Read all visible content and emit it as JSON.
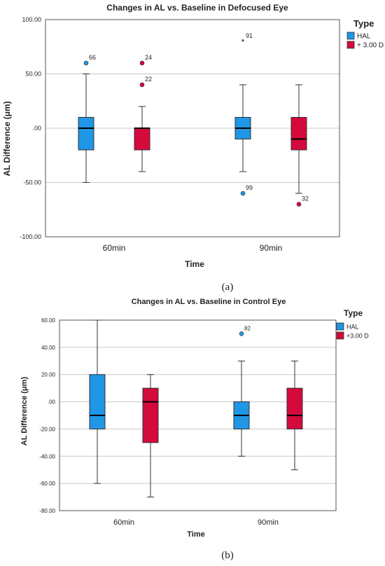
{
  "chart_data": [
    {
      "type": "box",
      "panel_label": "(a)",
      "title": "Changes in AL vs. Baseline in Defocused Eye",
      "xlabel": "Time",
      "ylabel": "AL Difference (μm)",
      "ylim": [
        -100,
        100
      ],
      "yticks": [
        100,
        50,
        0,
        -50,
        -100
      ],
      "ytick_labels": [
        "100.00",
        "50.00",
        ".00",
        "-50.00",
        "-100.00"
      ],
      "categories": [
        "60min",
        "90min"
      ],
      "legend": {
        "title": "Type",
        "position": "top-right"
      },
      "grid": true,
      "series": [
        {
          "name": "HAL",
          "color": "#1f96e6",
          "boxes": [
            {
              "category": "60min",
              "min": -50,
              "q1": -20,
              "median": 0,
              "q3": 10,
              "max": 50,
              "outliers": [
                {
                  "value": 60,
                  "label": "66",
                  "marker": "circle"
                }
              ]
            },
            {
              "category": "90min",
              "min": -40,
              "q1": -10,
              "median": 0,
              "q3": 10,
              "max": 40,
              "outliers": [
                {
                  "value": 80,
                  "label": "91",
                  "marker": "star"
                },
                {
                  "value": -60,
                  "label": "99",
                  "marker": "circle"
                }
              ]
            }
          ]
        },
        {
          "name": "+ 3.00 D",
          "color": "#d40a3c",
          "boxes": [
            {
              "category": "60min",
              "min": -40,
              "q1": -20,
              "median": 0,
              "q3": 0,
              "max": 20,
              "outliers": [
                {
                  "value": 60,
                  "label": "24",
                  "marker": "circle"
                },
                {
                  "value": 40,
                  "label": "22",
                  "marker": "circle"
                }
              ]
            },
            {
              "category": "90min",
              "min": -60,
              "q1": -20,
              "median": -10,
              "q3": 10,
              "max": 40,
              "outliers": [
                {
                  "value": -70,
                  "label": "32",
                  "marker": "circle"
                }
              ]
            }
          ]
        }
      ]
    },
    {
      "type": "box",
      "panel_label": "(b)",
      "title": "Changes in AL vs. Baseline in Control Eye",
      "xlabel": "Time",
      "ylabel": "AL Difference (μm)",
      "ylim": [
        -80,
        60
      ],
      "yticks": [
        60,
        40,
        20,
        0,
        -20,
        -40,
        -60,
        -80
      ],
      "ytick_labels": [
        "60.00",
        "40.00",
        "20.00",
        ".00",
        "-20.00",
        "-40.00",
        "-60.00",
        "-80.00"
      ],
      "categories": [
        "60min",
        "90min"
      ],
      "legend": {
        "title": "Type",
        "position": "top-right"
      },
      "grid": true,
      "series": [
        {
          "name": "HAL",
          "color": "#1f96e6",
          "boxes": [
            {
              "category": "60min",
              "min": -60,
              "q1": -20,
              "median": -10,
              "q3": 20,
              "max": 60,
              "outliers": []
            },
            {
              "category": "90min",
              "min": -40,
              "q1": -20,
              "median": -10,
              "q3": 0,
              "max": 30,
              "outliers": [
                {
                  "value": 50,
                  "label": "82",
                  "marker": "circle"
                }
              ]
            }
          ]
        },
        {
          "name": "+3.00 D",
          "color": "#d40a3c",
          "boxes": [
            {
              "category": "60min",
              "min": -70,
              "q1": -30,
              "median": 0,
              "q3": 10,
              "max": 20,
              "outliers": []
            },
            {
              "category": "90min",
              "min": -50,
              "q1": -20,
              "median": -10,
              "q3": 10,
              "max": 30,
              "outliers": []
            }
          ]
        }
      ]
    }
  ]
}
